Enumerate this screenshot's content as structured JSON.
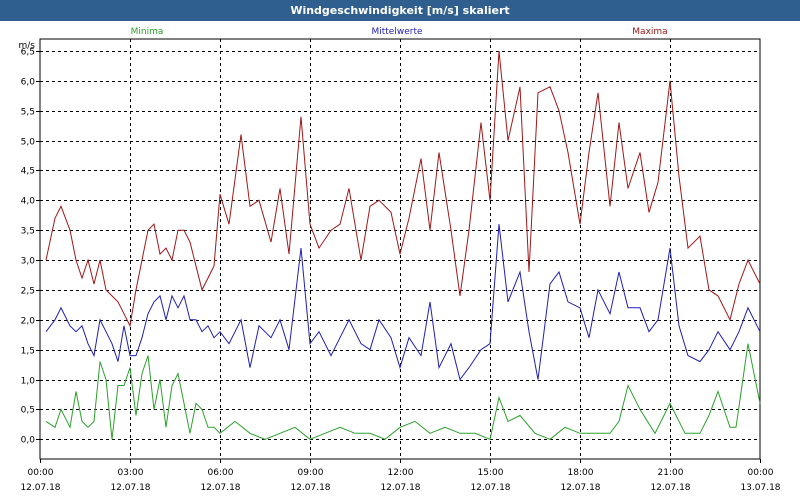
{
  "window": {
    "title": "Windgeschwindigkeit [m/s] skaliert"
  },
  "chart_data": {
    "type": "line",
    "title": "Windgeschwindigkeit [m/s] skaliert",
    "ylabel": "m/s",
    "xlabel": "",
    "ylim": [
      -0.33,
      6.7
    ],
    "xlim": [
      0,
      24
    ],
    "grid": true,
    "legend_position": "top",
    "yticks": [
      0.0,
      0.5,
      1.0,
      1.5,
      2.0,
      2.5,
      3.0,
      3.5,
      4.0,
      4.5,
      5.0,
      5.5,
      6.0,
      6.5
    ],
    "ytick_labels": [
      "0,0",
      "0,5",
      "1,0",
      "1,5",
      "2,0",
      "2,5",
      "3,0",
      "3,5",
      "4,0",
      "4,5",
      "5,0",
      "5,5",
      "6,0",
      "6,5"
    ],
    "xticks": [
      {
        "x": 0,
        "time": "00:00",
        "date": "12.07.18"
      },
      {
        "x": 3,
        "time": "03:00",
        "date": "12.07.18"
      },
      {
        "x": 6,
        "time": "06:00",
        "date": "12.07.18"
      },
      {
        "x": 9,
        "time": "09:00",
        "date": "12.07.18"
      },
      {
        "x": 12,
        "time": "12:00",
        "date": "12.07.18"
      },
      {
        "x": 15,
        "time": "15:00",
        "date": "12.07.18"
      },
      {
        "x": 18,
        "time": "18:00",
        "date": "12.07.18"
      },
      {
        "x": 21,
        "time": "21:00",
        "date": "12.07.18"
      },
      {
        "x": 24,
        "time": "00:00",
        "date": "13.07.18"
      }
    ],
    "series": [
      {
        "name": "Minima",
        "color": "#2ca02c",
        "x": [
          0.2,
          0.5,
          0.7,
          1.0,
          1.2,
          1.4,
          1.6,
          1.8,
          2.0,
          2.2,
          2.4,
          2.6,
          2.8,
          3.0,
          3.2,
          3.4,
          3.6,
          3.8,
          4.0,
          4.2,
          4.4,
          4.6,
          4.8,
          5.0,
          5.2,
          5.4,
          5.6,
          5.8,
          6.0,
          6.5,
          7.0,
          7.5,
          8.0,
          8.5,
          9.0,
          9.5,
          10.0,
          10.5,
          11.0,
          11.5,
          12.0,
          12.5,
          13.0,
          13.5,
          14.0,
          14.5,
          15.0,
          15.3,
          15.6,
          16.0,
          16.5,
          17.0,
          17.5,
          18.0,
          18.5,
          19.0,
          19.3,
          19.6,
          20.0,
          20.5,
          21.0,
          21.5,
          22.0,
          22.3,
          22.6,
          23.0,
          23.2,
          23.4,
          23.6,
          24.0
        ],
        "y": [
          0.3,
          0.2,
          0.5,
          0.2,
          0.8,
          0.3,
          0.2,
          0.3,
          1.3,
          1.0,
          0.0,
          0.9,
          0.9,
          1.2,
          0.4,
          1.1,
          1.4,
          0.5,
          1.0,
          0.2,
          0.9,
          1.1,
          0.6,
          0.1,
          0.6,
          0.5,
          0.2,
          0.2,
          0.1,
          0.3,
          0.1,
          0.0,
          0.1,
          0.2,
          0.0,
          0.1,
          0.2,
          0.1,
          0.1,
          0.0,
          0.2,
          0.3,
          0.1,
          0.2,
          0.1,
          0.1,
          0.0,
          0.7,
          0.3,
          0.4,
          0.1,
          0.0,
          0.2,
          0.1,
          0.1,
          0.1,
          0.3,
          0.9,
          0.5,
          0.1,
          0.6,
          0.1,
          0.1,
          0.4,
          0.8,
          0.2,
          0.2,
          0.9,
          1.6,
          0.6
        ]
      },
      {
        "name": "Mittelwerte",
        "color": "#1f1fb4",
        "x": [
          0.2,
          0.5,
          0.7,
          1.0,
          1.2,
          1.4,
          1.6,
          1.8,
          2.0,
          2.2,
          2.4,
          2.6,
          2.8,
          3.0,
          3.2,
          3.4,
          3.6,
          3.8,
          4.0,
          4.2,
          4.4,
          4.6,
          4.8,
          5.0,
          5.2,
          5.4,
          5.6,
          5.8,
          6.0,
          6.3,
          6.7,
          7.0,
          7.3,
          7.7,
          8.0,
          8.3,
          8.7,
          9.0,
          9.3,
          9.7,
          10.0,
          10.3,
          10.7,
          11.0,
          11.3,
          11.7,
          12.0,
          12.3,
          12.7,
          13.0,
          13.3,
          13.7,
          14.0,
          14.3,
          14.7,
          15.0,
          15.3,
          15.6,
          16.0,
          16.3,
          16.6,
          17.0,
          17.3,
          17.6,
          18.0,
          18.3,
          18.6,
          19.0,
          19.3,
          19.6,
          20.0,
          20.3,
          20.6,
          21.0,
          21.3,
          21.6,
          22.0,
          22.3,
          22.6,
          23.0,
          23.3,
          23.6,
          24.0
        ],
        "y": [
          1.8,
          2.0,
          2.2,
          1.9,
          1.8,
          1.9,
          1.6,
          1.4,
          2.0,
          1.8,
          1.6,
          1.3,
          1.9,
          1.4,
          1.4,
          1.7,
          2.1,
          2.3,
          2.4,
          2.0,
          2.4,
          2.2,
          2.4,
          2.0,
          2.0,
          1.8,
          1.9,
          1.7,
          1.8,
          1.6,
          2.0,
          1.2,
          1.9,
          1.7,
          2.0,
          1.5,
          3.2,
          1.6,
          1.8,
          1.4,
          1.7,
          2.0,
          1.6,
          1.5,
          2.0,
          1.7,
          1.2,
          1.7,
          1.4,
          2.3,
          1.2,
          1.6,
          1.0,
          1.2,
          1.5,
          1.6,
          3.6,
          2.3,
          2.8,
          1.8,
          1.0,
          2.6,
          2.8,
          2.3,
          2.2,
          1.7,
          2.5,
          2.1,
          2.8,
          2.2,
          2.2,
          1.8,
          2.0,
          3.2,
          1.9,
          1.4,
          1.3,
          1.5,
          1.8,
          1.5,
          1.8,
          2.2,
          1.8
        ]
      },
      {
        "name": "Maxima",
        "color": "#a01818",
        "x": [
          0.2,
          0.5,
          0.7,
          1.0,
          1.2,
          1.4,
          1.6,
          1.8,
          2.0,
          2.2,
          2.4,
          2.6,
          2.8,
          3.0,
          3.2,
          3.4,
          3.6,
          3.8,
          4.0,
          4.2,
          4.4,
          4.6,
          4.8,
          5.0,
          5.2,
          5.4,
          5.6,
          5.8,
          6.0,
          6.3,
          6.7,
          7.0,
          7.3,
          7.7,
          8.0,
          8.3,
          8.7,
          9.0,
          9.3,
          9.7,
          10.0,
          10.3,
          10.7,
          11.0,
          11.3,
          11.7,
          12.0,
          12.3,
          12.7,
          13.0,
          13.3,
          13.7,
          14.0,
          14.3,
          14.7,
          15.0,
          15.3,
          15.6,
          16.0,
          16.3,
          16.6,
          17.0,
          17.3,
          17.6,
          18.0,
          18.3,
          18.6,
          19.0,
          19.3,
          19.6,
          20.0,
          20.3,
          20.6,
          21.0,
          21.3,
          21.6,
          22.0,
          22.3,
          22.6,
          23.0,
          23.3,
          23.6,
          24.0
        ],
        "y": [
          3.0,
          3.7,
          3.9,
          3.5,
          3.0,
          2.7,
          3.0,
          2.6,
          3.0,
          2.5,
          2.4,
          2.3,
          2.1,
          1.9,
          2.5,
          3.0,
          3.5,
          3.6,
          3.1,
          3.2,
          3.0,
          3.5,
          3.5,
          3.3,
          2.9,
          2.5,
          2.7,
          2.9,
          4.1,
          3.6,
          5.1,
          3.9,
          4.0,
          3.3,
          4.2,
          3.1,
          5.4,
          3.6,
          3.2,
          3.5,
          3.6,
          4.2,
          3.0,
          3.9,
          4.0,
          3.8,
          3.1,
          3.7,
          4.7,
          3.5,
          4.8,
          3.5,
          2.4,
          3.5,
          5.3,
          4.0,
          6.5,
          5.0,
          5.9,
          2.8,
          5.8,
          5.9,
          5.5,
          4.8,
          3.6,
          4.8,
          5.8,
          3.9,
          5.3,
          4.2,
          4.8,
          3.8,
          4.3,
          6.0,
          4.4,
          3.2,
          3.4,
          2.5,
          2.4,
          2.0,
          2.6,
          3.0,
          2.6
        ]
      }
    ]
  }
}
